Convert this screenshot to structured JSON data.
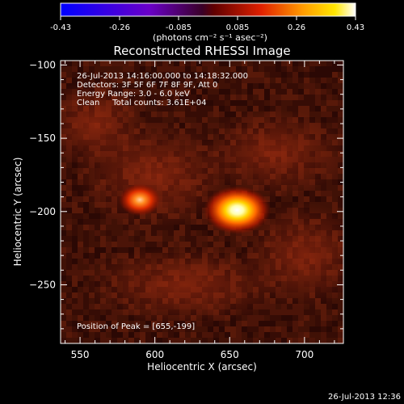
{
  "colorbar": {
    "ticks": [
      "-0.43",
      "-0.26",
      "-0.085",
      "0.085",
      "0.26",
      "0.43"
    ],
    "units_label": "(photons cm⁻² s⁻¹ asec⁻²)"
  },
  "chart_data": {
    "type": "heatmap",
    "title": "Reconstructed RHESSI Image",
    "xlabel": "Heliocentric X (arcsec)",
    "ylabel": "Heliocentric Y (arcsec)",
    "xlim": [
      537,
      726
    ],
    "ylim": [
      -290,
      -97
    ],
    "xticks": [
      550,
      600,
      650,
      700
    ],
    "yticks": [
      -100,
      -150,
      -200,
      -250
    ],
    "color_range": [
      -0.43,
      0.43
    ],
    "colormap": "red-temperature",
    "sources": [
      {
        "x": 655,
        "y": -199,
        "strength": "peak"
      },
      {
        "x": 590,
        "y": -192,
        "strength": "secondary"
      }
    ],
    "annotations": [
      "26-Jul-2013 14:16:00.000 to 14:18:32.000",
      "Detectors: 3F 5F 6F 7F 8F 9F, Att 0",
      "Energy Range: 3.0 - 6.0 keV",
      "Clean     Total counts: 3.61E+04"
    ],
    "peak_label": "Position of Peak = [655,-199]"
  },
  "footer_timestamp": "26-Jul-2013 12:36"
}
